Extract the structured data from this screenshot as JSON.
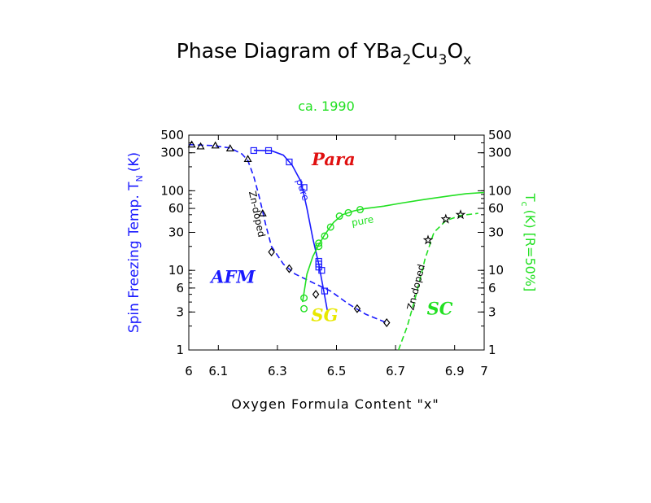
{
  "chart_data": {
    "type": "scatter",
    "title": "Phase Diagram of YBa2Cu3Ox",
    "title_parts": {
      "prefix": "Phase Diagram of YBa",
      "s1": "2",
      "cu": "Cu",
      "s2": "3",
      "o": "O",
      "s3": "x"
    },
    "subtitle": "ca. 1990",
    "xlabel": "Oxygen Formula Content \"x\"",
    "ylabel_left": "Spin Freezing Temp. T",
    "ylabel_left_sub": "N",
    "ylabel_left_unit": "(K)",
    "ylabel_right": "T",
    "ylabel_right_sub": "c",
    "ylabel_right_unit": "(K) [R=50%]",
    "xlim": [
      6.0,
      7.0
    ],
    "ylim": [
      1,
      500
    ],
    "yscale": "log",
    "x_ticks": [
      "6",
      "6.1",
      "6.3",
      "6.5",
      "6.7",
      "6.9",
      "7"
    ],
    "x_tick_values": [
      6.0,
      6.1,
      6.3,
      6.5,
      6.7,
      6.9,
      7.0
    ],
    "y_ticks": [
      "1",
      "3",
      "6",
      "10",
      "30",
      "60",
      "100",
      "300",
      "500"
    ],
    "y_tick_values": [
      1,
      3,
      6,
      10,
      30,
      60,
      100,
      300,
      500
    ],
    "colors": {
      "blue": "#1a1aff",
      "green": "#22e022",
      "red": "#e01010",
      "yellow": "#e8e800",
      "black": "#000000"
    },
    "regions": [
      {
        "label": "Para",
        "x": 6.49,
        "y": 210,
        "color": "#e01010"
      },
      {
        "label": "AFM",
        "x": 6.15,
        "y": 7,
        "color": "#1a1aff"
      },
      {
        "label": "SG",
        "x": 6.46,
        "y": 2.3,
        "color": "#e8e800"
      },
      {
        "label": "SC",
        "x": 6.85,
        "y": 2.8,
        "color": "#22e022"
      }
    ],
    "annotations": [
      {
        "text": "Zn-doped",
        "x": 6.22,
        "y": 50,
        "color": "#000000",
        "rotate": 78
      },
      {
        "text": "pure",
        "x": 6.375,
        "y": 100,
        "color": "#1a1aff",
        "rotate": 72
      },
      {
        "text": "pure",
        "x": 6.59,
        "y": 38,
        "color": "#22e022",
        "rotate": -10
      },
      {
        "text": "Zn-doped",
        "x": 6.78,
        "y": 6,
        "color": "#000000",
        "rotate": -76
      }
    ],
    "series": [
      {
        "id": "zn_afm",
        "color": "#1a1aff",
        "marker": "triangle",
        "dashed": true,
        "points": [
          [
            6.01,
            380
          ],
          [
            6.04,
            360
          ],
          [
            6.09,
            370
          ],
          [
            6.14,
            340
          ],
          [
            6.2,
            250
          ],
          [
            6.25,
            52
          ]
        ],
        "curve": [
          [
            6.0,
            380
          ],
          [
            6.08,
            370
          ],
          [
            6.14,
            345
          ],
          [
            6.18,
            290
          ],
          [
            6.2,
            240
          ],
          [
            6.22,
            150
          ],
          [
            6.24,
            80
          ],
          [
            6.26,
            38
          ],
          [
            6.28,
            20
          ],
          [
            6.32,
            12
          ],
          [
            6.36,
            9
          ],
          [
            6.42,
            7
          ],
          [
            6.48,
            5.5
          ],
          [
            6.54,
            3.8
          ],
          [
            6.6,
            2.8
          ],
          [
            6.67,
            2.2
          ]
        ]
      },
      {
        "id": "zn_sg",
        "color": "#000000",
        "marker": "diamond",
        "points": [
          [
            6.28,
            17
          ],
          [
            6.34,
            10.5
          ],
          [
            6.43,
            5
          ],
          [
            6.57,
            3.3
          ],
          [
            6.67,
            2.2
          ]
        ]
      },
      {
        "id": "pure_afm",
        "color": "#1a1aff",
        "marker": "square",
        "dashed": false,
        "points": [
          [
            6.22,
            320
          ],
          [
            6.27,
            320
          ],
          [
            6.34,
            230
          ],
          [
            6.39,
            110
          ],
          [
            6.44,
            11
          ],
          [
            6.44,
            12
          ],
          [
            6.44,
            13
          ],
          [
            6.45,
            10
          ],
          [
            6.46,
            5.5
          ]
        ],
        "curve": [
          [
            6.22,
            322
          ],
          [
            6.28,
            318
          ],
          [
            6.32,
            280
          ],
          [
            6.35,
            210
          ],
          [
            6.38,
            130
          ],
          [
            6.4,
            60
          ],
          [
            6.42,
            25
          ],
          [
            6.44,
            12
          ],
          [
            6.455,
            6
          ],
          [
            6.47,
            3
          ]
        ]
      },
      {
        "id": "pure_sc",
        "color": "#22e022",
        "marker": "circle",
        "dashed": false,
        "points": [
          [
            6.39,
            3.3
          ],
          [
            6.39,
            4.5
          ],
          [
            6.44,
            20
          ],
          [
            6.44,
            22
          ],
          [
            6.46,
            27
          ],
          [
            6.48,
            35
          ],
          [
            6.51,
            48
          ],
          [
            6.54,
            53
          ],
          [
            6.58,
            58
          ]
        ],
        "curve": [
          [
            6.385,
            4
          ],
          [
            6.4,
            9
          ],
          [
            6.42,
            15
          ],
          [
            6.44,
            21
          ],
          [
            6.46,
            28
          ],
          [
            6.49,
            40
          ],
          [
            6.52,
            50
          ],
          [
            6.56,
            56
          ],
          [
            6.6,
            60
          ],
          [
            6.66,
            64
          ],
          [
            6.72,
            70
          ],
          [
            6.8,
            78
          ],
          [
            6.88,
            86
          ],
          [
            6.94,
            92
          ],
          [
            7.0,
            95
          ]
        ]
      },
      {
        "id": "zn_sc",
        "color": "#22e022",
        "marker": "star",
        "dashed": true,
        "marker_color": "#000000",
        "points": [
          [
            6.81,
            24
          ],
          [
            6.87,
            44
          ],
          [
            6.92,
            50
          ]
        ],
        "curve": [
          [
            6.71,
            1.0
          ],
          [
            6.74,
            2
          ],
          [
            6.77,
            5
          ],
          [
            6.8,
            14
          ],
          [
            6.83,
            30
          ],
          [
            6.87,
            42
          ],
          [
            6.92,
            49
          ],
          [
            6.98,
            52
          ]
        ]
      }
    ]
  }
}
